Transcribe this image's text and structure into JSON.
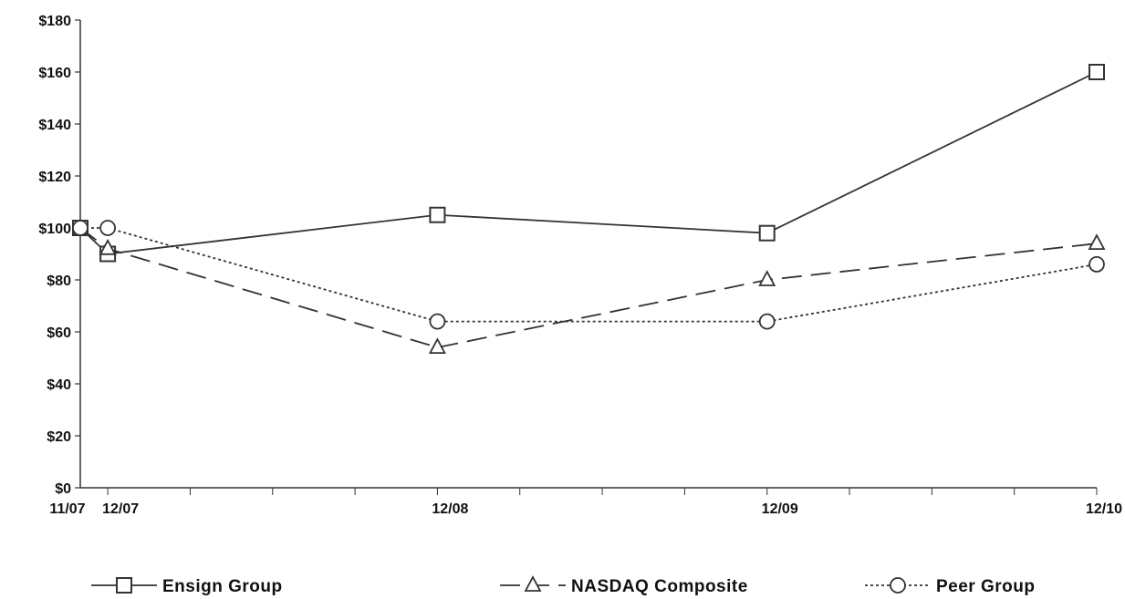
{
  "chart_data": {
    "type": "line",
    "title": "",
    "xlabel": "",
    "ylabel": "",
    "categories": [
      "11/07",
      "12/07",
      "12/08",
      "12/09",
      "12/10"
    ],
    "x_months": [
      0,
      1,
      13,
      25,
      37
    ],
    "x_range_months": [
      0,
      37
    ],
    "ylim": [
      0,
      180
    ],
    "y_ticks": [
      0,
      20,
      40,
      60,
      80,
      100,
      120,
      140,
      160,
      180
    ],
    "y_tick_labels": [
      "$0",
      "$20",
      "$40",
      "$60",
      "$80",
      "$100",
      "$120",
      "$140",
      "$160",
      "$180"
    ],
    "grid": false,
    "legend_position": "bottom",
    "series": [
      {
        "name": "Ensign Group",
        "values": [
          100,
          90,
          105,
          98,
          160
        ],
        "marker": "square",
        "line_style": "solid"
      },
      {
        "name": "NASDAQ Composite",
        "values": [
          100,
          92,
          54,
          80,
          94
        ],
        "marker": "triangle",
        "line_style": "dashed"
      },
      {
        "name": "Peer Group",
        "values": [
          100,
          100,
          64,
          64,
          86
        ],
        "marker": "circle",
        "line_style": "dotted"
      }
    ]
  }
}
